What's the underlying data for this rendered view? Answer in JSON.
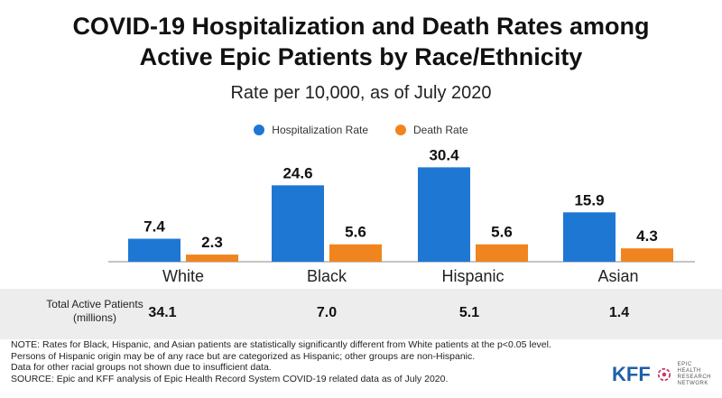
{
  "title_line1": "COVID-19 Hospitalization and Death Rates among",
  "title_line2": "Active Epic Patients by Race/Ethnicity",
  "subtitle": "Rate per 10,000, as of July 2020",
  "colors": {
    "hospitalization": "#1f77d4",
    "death": "#f0841f"
  },
  "chart_data": {
    "type": "bar",
    "title": "COVID-19 Hospitalization and Death Rates among Active Epic Patients by Race/Ethnicity",
    "subtitle": "Rate per 10,000, as of July 2020",
    "categories": [
      "White",
      "Black",
      "Hispanic",
      "Asian"
    ],
    "series": [
      {
        "name": "Hospitalization Rate",
        "values": [
          7.4,
          24.6,
          30.4,
          15.9
        ]
      },
      {
        "name": "Death Rate",
        "values": [
          2.3,
          5.6,
          5.6,
          4.3
        ]
      }
    ],
    "data_labels": [
      [
        "7.4",
        "24.6",
        "30.4",
        "15.9"
      ],
      [
        "2.3",
        "5.6",
        "5.6",
        "4.3"
      ]
    ],
    "ylim": [
      0,
      34
    ],
    "grid": false,
    "legend": "top-center"
  },
  "table": {
    "label_line1": "Total Active Patients",
    "label_line2": "(millions)",
    "values": [
      "34.1",
      "7.0",
      "5.1",
      "1.4"
    ]
  },
  "notes": [
    "NOTE: Rates for Black, Hispanic, and Asian patients are statistically significantly different from White patients at the p<0.05 level.",
    "Persons of Hispanic origin may be of any race but are categorized as Hispanic; other groups are non-Hispanic.",
    "Data for other racial groups not shown due to insufficient data.",
    "SOURCE: Epic and KFF analysis of Epic Health Record System COVID-19 related data as of July 2020."
  ],
  "logo": {
    "kff": "KFF",
    "epic_line1": "EPIC",
    "epic_line2": "HEALTH",
    "epic_line3": "RESEARCH",
    "epic_line4": "NETWORK",
    "mark_icon": "epic-network-icon"
  }
}
